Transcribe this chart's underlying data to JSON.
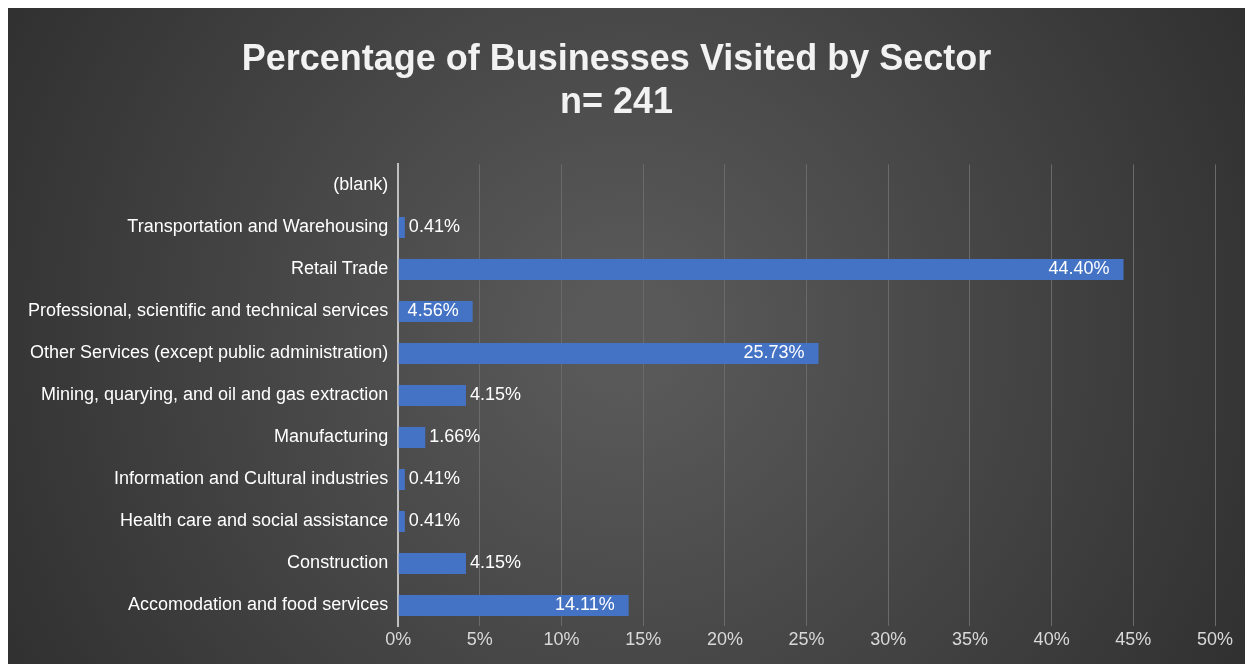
{
  "chart_data": {
    "type": "bar",
    "orientation": "horizontal",
    "title": "Percentage of Businesses Visited by Sector",
    "subtitle": "n= 241",
    "categories": [
      "(blank)",
      "Transportation and Warehousing",
      "Retail Trade",
      "Professional, scientific and technical services",
      "Other Services (except public administration)",
      "Mining, quarying, and oil and gas extraction",
      "Manufacturing",
      "Information and Cultural industries",
      "Health care and social assistance",
      "Construction",
      "Accomodation and food services"
    ],
    "values": [
      null,
      0.41,
      44.4,
      4.56,
      25.73,
      4.15,
      1.66,
      0.41,
      0.41,
      4.15,
      14.11
    ],
    "value_labels": [
      null,
      "0.41%",
      "44.40%",
      "4.56%",
      "25.73%",
      "4.15%",
      "1.66%",
      "0.41%",
      "0.41%",
      "4.15%",
      "14.11%"
    ],
    "color": "#4472c4",
    "xlim": [
      0,
      50
    ],
    "xticks": [
      {
        "value": 0,
        "label": "0%"
      },
      {
        "value": 5,
        "label": "5%"
      },
      {
        "value": 10,
        "label": "10%"
      },
      {
        "value": 15,
        "label": "15%"
      },
      {
        "value": 20,
        "label": "20%"
      },
      {
        "value": 25,
        "label": "25%"
      },
      {
        "value": 30,
        "label": "30%"
      },
      {
        "value": 35,
        "label": "35%"
      },
      {
        "value": 40,
        "label": "40%"
      },
      {
        "value": 45,
        "label": "45%"
      },
      {
        "value": 50,
        "label": "50%"
      }
    ],
    "grid": "x",
    "legend": false
  }
}
